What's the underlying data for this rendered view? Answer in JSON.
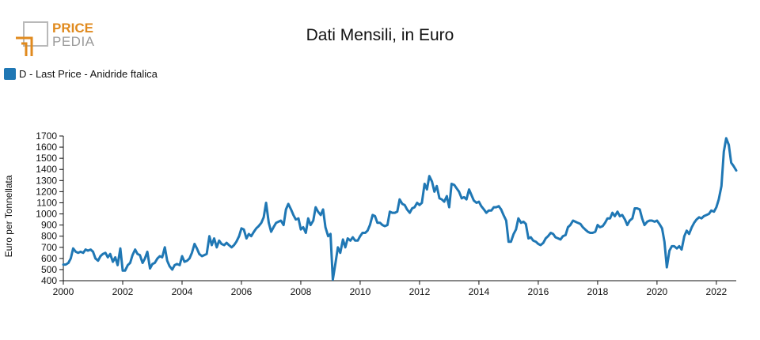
{
  "logo": {
    "line1": "PRICE",
    "line2": "PEDIA",
    "accent_color": "#e08a1e",
    "muted_color": "#9a9a9a"
  },
  "chart_data": {
    "type": "line",
    "title": "Dati Mensili, in Euro",
    "xlabel": "",
    "ylabel": "Euro per Tonnellata",
    "legend_position": "top-left",
    "grid": false,
    "xlim": [
      2000.0,
      2022.67
    ],
    "ylim": [
      400,
      1700
    ],
    "x_ticks": [
      "2000",
      "2002",
      "2004",
      "2006",
      "2008",
      "2010",
      "2012",
      "2014",
      "2016",
      "2018",
      "2020",
      "2022"
    ],
    "y_ticks": [
      "400",
      "500",
      "600",
      "700",
      "800",
      "900",
      "1000",
      "1100",
      "1200",
      "1300",
      "1400",
      "1500",
      "1600",
      "1700"
    ],
    "series": [
      {
        "name": "D - Last Price - Anidride ftalica",
        "color": "#1f77b4",
        "points": [
          [
            2000.0,
            545
          ],
          [
            2000.08,
            545
          ],
          [
            2000.17,
            560
          ],
          [
            2000.25,
            600
          ],
          [
            2000.33,
            690
          ],
          [
            2000.42,
            660
          ],
          [
            2000.5,
            650
          ],
          [
            2000.58,
            660
          ],
          [
            2000.67,
            650
          ],
          [
            2000.75,
            680
          ],
          [
            2000.83,
            670
          ],
          [
            2000.92,
            680
          ],
          [
            2001.0,
            660
          ],
          [
            2001.08,
            600
          ],
          [
            2001.17,
            580
          ],
          [
            2001.25,
            620
          ],
          [
            2001.33,
            640
          ],
          [
            2001.42,
            650
          ],
          [
            2001.5,
            610
          ],
          [
            2001.58,
            640
          ],
          [
            2001.67,
            570
          ],
          [
            2001.75,
            610
          ],
          [
            2001.83,
            540
          ],
          [
            2001.92,
            690
          ],
          [
            2002.0,
            490
          ],
          [
            2002.08,
            490
          ],
          [
            2002.17,
            540
          ],
          [
            2002.25,
            560
          ],
          [
            2002.33,
            630
          ],
          [
            2002.42,
            680
          ],
          [
            2002.5,
            640
          ],
          [
            2002.58,
            630
          ],
          [
            2002.67,
            560
          ],
          [
            2002.75,
            600
          ],
          [
            2002.83,
            660
          ],
          [
            2002.92,
            510
          ],
          [
            2003.0,
            550
          ],
          [
            2003.08,
            560
          ],
          [
            2003.17,
            600
          ],
          [
            2003.25,
            620
          ],
          [
            2003.33,
            610
          ],
          [
            2003.42,
            700
          ],
          [
            2003.5,
            580
          ],
          [
            2003.58,
            530
          ],
          [
            2003.67,
            500
          ],
          [
            2003.75,
            540
          ],
          [
            2003.83,
            550
          ],
          [
            2003.92,
            540
          ],
          [
            2004.0,
            620
          ],
          [
            2004.08,
            570
          ],
          [
            2004.17,
            580
          ],
          [
            2004.25,
            600
          ],
          [
            2004.33,
            650
          ],
          [
            2004.42,
            730
          ],
          [
            2004.5,
            690
          ],
          [
            2004.58,
            640
          ],
          [
            2004.67,
            620
          ],
          [
            2004.75,
            630
          ],
          [
            2004.83,
            640
          ],
          [
            2004.92,
            800
          ],
          [
            2005.0,
            720
          ],
          [
            2005.08,
            780
          ],
          [
            2005.17,
            700
          ],
          [
            2005.25,
            760
          ],
          [
            2005.33,
            730
          ],
          [
            2005.42,
            720
          ],
          [
            2005.5,
            740
          ],
          [
            2005.58,
            720
          ],
          [
            2005.67,
            700
          ],
          [
            2005.75,
            720
          ],
          [
            2005.83,
            750
          ],
          [
            2005.92,
            800
          ],
          [
            2006.0,
            870
          ],
          [
            2006.08,
            860
          ],
          [
            2006.17,
            780
          ],
          [
            2006.25,
            820
          ],
          [
            2006.33,
            800
          ],
          [
            2006.42,
            840
          ],
          [
            2006.5,
            870
          ],
          [
            2006.58,
            890
          ],
          [
            2006.67,
            920
          ],
          [
            2006.75,
            970
          ],
          [
            2006.83,
            1100
          ],
          [
            2006.92,
            920
          ],
          [
            2007.0,
            840
          ],
          [
            2007.08,
            880
          ],
          [
            2007.17,
            920
          ],
          [
            2007.25,
            930
          ],
          [
            2007.33,
            940
          ],
          [
            2007.42,
            900
          ],
          [
            2007.5,
            1040
          ],
          [
            2007.58,
            1090
          ],
          [
            2007.67,
            1040
          ],
          [
            2007.75,
            990
          ],
          [
            2007.83,
            950
          ],
          [
            2007.92,
            960
          ],
          [
            2008.0,
            860
          ],
          [
            2008.08,
            880
          ],
          [
            2008.17,
            830
          ],
          [
            2008.25,
            960
          ],
          [
            2008.33,
            900
          ],
          [
            2008.42,
            940
          ],
          [
            2008.5,
            1060
          ],
          [
            2008.58,
            1020
          ],
          [
            2008.67,
            990
          ],
          [
            2008.75,
            1040
          ],
          [
            2008.83,
            880
          ],
          [
            2008.92,
            800
          ],
          [
            2009.0,
            820
          ],
          [
            2009.08,
            410
          ],
          [
            2009.17,
            560
          ],
          [
            2009.25,
            700
          ],
          [
            2009.33,
            650
          ],
          [
            2009.42,
            770
          ],
          [
            2009.5,
            700
          ],
          [
            2009.58,
            780
          ],
          [
            2009.67,
            760
          ],
          [
            2009.75,
            790
          ],
          [
            2009.83,
            760
          ],
          [
            2009.92,
            760
          ],
          [
            2010.0,
            800
          ],
          [
            2010.08,
            830
          ],
          [
            2010.17,
            830
          ],
          [
            2010.25,
            850
          ],
          [
            2010.33,
            900
          ],
          [
            2010.42,
            990
          ],
          [
            2010.5,
            980
          ],
          [
            2010.58,
            920
          ],
          [
            2010.67,
            920
          ],
          [
            2010.75,
            900
          ],
          [
            2010.83,
            890
          ],
          [
            2010.92,
            900
          ],
          [
            2011.0,
            1020
          ],
          [
            2011.08,
            1010
          ],
          [
            2011.17,
            1010
          ],
          [
            2011.25,
            1020
          ],
          [
            2011.33,
            1130
          ],
          [
            2011.42,
            1090
          ],
          [
            2011.5,
            1080
          ],
          [
            2011.58,
            1040
          ],
          [
            2011.67,
            1010
          ],
          [
            2011.75,
            1050
          ],
          [
            2011.83,
            1060
          ],
          [
            2011.92,
            1100
          ],
          [
            2012.0,
            1080
          ],
          [
            2012.08,
            1100
          ],
          [
            2012.17,
            1270
          ],
          [
            2012.25,
            1220
          ],
          [
            2012.33,
            1340
          ],
          [
            2012.42,
            1290
          ],
          [
            2012.5,
            1200
          ],
          [
            2012.58,
            1250
          ],
          [
            2012.67,
            1140
          ],
          [
            2012.75,
            1130
          ],
          [
            2012.83,
            1110
          ],
          [
            2012.92,
            1160
          ],
          [
            2013.0,
            1060
          ],
          [
            2013.08,
            1270
          ],
          [
            2013.17,
            1260
          ],
          [
            2013.25,
            1230
          ],
          [
            2013.33,
            1200
          ],
          [
            2013.42,
            1140
          ],
          [
            2013.5,
            1150
          ],
          [
            2013.58,
            1130
          ],
          [
            2013.67,
            1220
          ],
          [
            2013.75,
            1170
          ],
          [
            2013.83,
            1120
          ],
          [
            2013.92,
            1100
          ],
          [
            2014.0,
            1110
          ],
          [
            2014.08,
            1070
          ],
          [
            2014.17,
            1040
          ],
          [
            2014.25,
            1010
          ],
          [
            2014.33,
            1030
          ],
          [
            2014.42,
            1030
          ],
          [
            2014.5,
            1060
          ],
          [
            2014.58,
            1060
          ],
          [
            2014.67,
            1070
          ],
          [
            2014.75,
            1040
          ],
          [
            2014.83,
            990
          ],
          [
            2014.92,
            940
          ],
          [
            2015.0,
            750
          ],
          [
            2015.08,
            750
          ],
          [
            2015.17,
            820
          ],
          [
            2015.25,
            860
          ],
          [
            2015.33,
            960
          ],
          [
            2015.42,
            920
          ],
          [
            2015.5,
            930
          ],
          [
            2015.58,
            910
          ],
          [
            2015.67,
            780
          ],
          [
            2015.75,
            790
          ],
          [
            2015.83,
            760
          ],
          [
            2015.92,
            750
          ],
          [
            2016.0,
            730
          ],
          [
            2016.08,
            720
          ],
          [
            2016.17,
            740
          ],
          [
            2016.25,
            780
          ],
          [
            2016.33,
            800
          ],
          [
            2016.42,
            830
          ],
          [
            2016.5,
            820
          ],
          [
            2016.58,
            790
          ],
          [
            2016.67,
            780
          ],
          [
            2016.75,
            770
          ],
          [
            2016.83,
            800
          ],
          [
            2016.92,
            810
          ],
          [
            2017.0,
            880
          ],
          [
            2017.08,
            900
          ],
          [
            2017.17,
            940
          ],
          [
            2017.25,
            930
          ],
          [
            2017.33,
            920
          ],
          [
            2017.42,
            910
          ],
          [
            2017.5,
            880
          ],
          [
            2017.58,
            860
          ],
          [
            2017.67,
            840
          ],
          [
            2017.75,
            830
          ],
          [
            2017.83,
            830
          ],
          [
            2017.92,
            840
          ],
          [
            2018.0,
            900
          ],
          [
            2018.08,
            880
          ],
          [
            2018.17,
            890
          ],
          [
            2018.25,
            920
          ],
          [
            2018.33,
            960
          ],
          [
            2018.42,
            960
          ],
          [
            2018.5,
            1010
          ],
          [
            2018.58,
            980
          ],
          [
            2018.67,
            1020
          ],
          [
            2018.75,
            980
          ],
          [
            2018.83,
            990
          ],
          [
            2018.92,
            950
          ],
          [
            2019.0,
            900
          ],
          [
            2019.08,
            940
          ],
          [
            2019.17,
            960
          ],
          [
            2019.25,
            1050
          ],
          [
            2019.33,
            1050
          ],
          [
            2019.42,
            1040
          ],
          [
            2019.5,
            960
          ],
          [
            2019.58,
            900
          ],
          [
            2019.67,
            930
          ],
          [
            2019.75,
            940
          ],
          [
            2019.83,
            940
          ],
          [
            2019.92,
            930
          ],
          [
            2020.0,
            940
          ],
          [
            2020.08,
            910
          ],
          [
            2020.17,
            870
          ],
          [
            2020.25,
            750
          ],
          [
            2020.33,
            520
          ],
          [
            2020.42,
            670
          ],
          [
            2020.5,
            710
          ],
          [
            2020.58,
            710
          ],
          [
            2020.67,
            690
          ],
          [
            2020.75,
            710
          ],
          [
            2020.83,
            680
          ],
          [
            2020.92,
            800
          ],
          [
            2021.0,
            850
          ],
          [
            2021.08,
            820
          ],
          [
            2021.17,
            880
          ],
          [
            2021.25,
            920
          ],
          [
            2021.33,
            950
          ],
          [
            2021.42,
            970
          ],
          [
            2021.5,
            960
          ],
          [
            2021.58,
            980
          ],
          [
            2021.67,
            990
          ],
          [
            2021.75,
            1000
          ],
          [
            2021.83,
            1030
          ],
          [
            2021.92,
            1020
          ],
          [
            2022.0,
            1060
          ],
          [
            2022.08,
            1130
          ],
          [
            2022.17,
            1250
          ],
          [
            2022.25,
            1560
          ],
          [
            2022.33,
            1680
          ],
          [
            2022.42,
            1620
          ],
          [
            2022.5,
            1460
          ],
          [
            2022.58,
            1430
          ],
          [
            2022.67,
            1390
          ]
        ]
      }
    ]
  }
}
